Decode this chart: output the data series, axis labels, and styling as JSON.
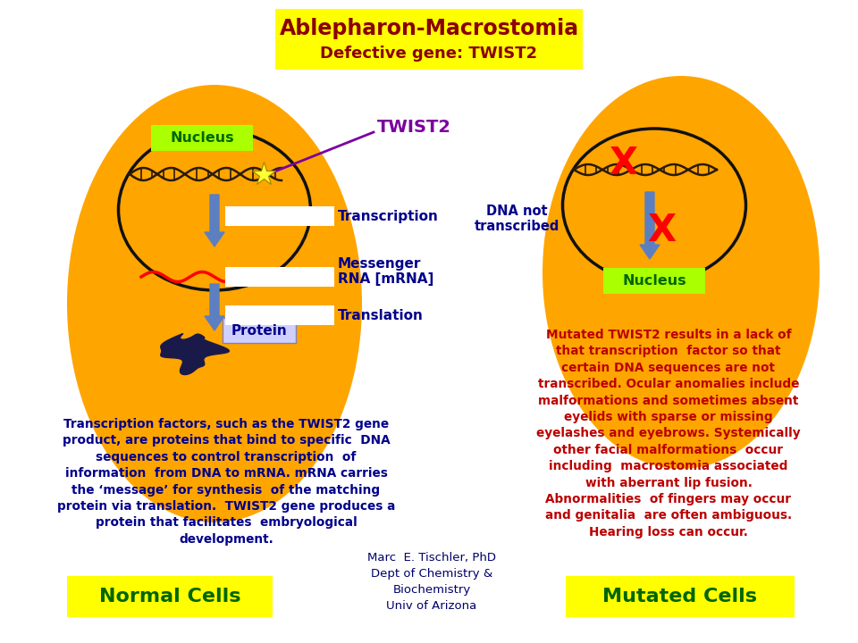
{
  "title_line1": "Ablepharon-Macrostomia",
  "title_line2": "Defective gene: TWIST2",
  "title_bg": "#FFFF00",
  "title_fg": "#8B0000",
  "cell_color": "#FFA500",
  "nucleus_edge": "#111111",
  "arrow_fill": "#5B7FC1",
  "nucleus_label_bg": "#AAFF00",
  "nucleus_label_fg": "#006600",
  "twist2_fg": "#7B00A0",
  "twist2_line": "#7B00A0",
  "protein_label_bg": "#D0D0FF",
  "protein_label_fg": "#00008B",
  "protein_body": "#1a1a4a",
  "label_fg": "#00008B",
  "X_fg": "#FF0000",
  "dna_color": "#2a1a08",
  "mrna_color": "#FF0000",
  "normal_cells_bg": "#FFFF00",
  "normal_cells_fg": "#006600",
  "mutated_cells_bg": "#FFFF00",
  "mutated_cells_fg": "#006600",
  "left_desc_fg": "#00008B",
  "right_desc_fg": "#BB0000",
  "credit_fg": "#00006A",
  "bg": "#FFFFFF",
  "left_desc": "Transcription factors, such as the TWIST2 gene\nproduct, are proteins that bind to specific  DNA\nsequences to control transcription  of\ninformation  from DNA to mRNA. mRNA carries\nthe ‘message’ for synthesis  of the matching\nprotein via translation.  TWIST2 gene produces a\nprotein that facilitates  embryological\ndevelopment.",
  "right_desc": "Mutated TWIST2 results in a lack of\nthat transcription  factor so that\ncertain DNA sequences are not\ntranscribed. Ocular anomalies include\nmalformations and sometimes absent\neyelids with sparse or missing\neyelashes and eyebrows. Systemically\nother facial malformations  occur\nincluding  macrostomia associated\nwith aberrant lip fusion.\nAbnormalities  of fingers may occur\nand genitalia  are often ambiguous.\nHearing loss can occur.",
  "credit": "Marc  E. Tischler, PhD\nDept of Chemistry &\nBiochemistry\nUniv of Arizona"
}
